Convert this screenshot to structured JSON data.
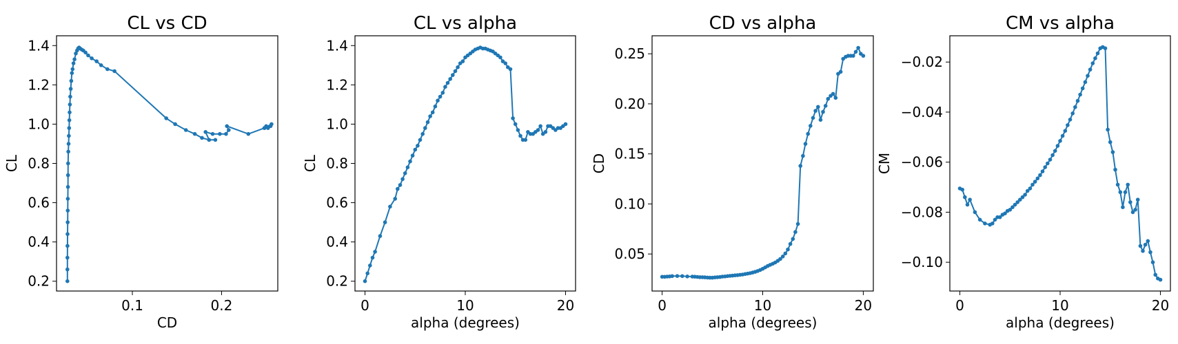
{
  "chart_data": [
    {
      "type": "line",
      "title": "CL vs CD",
      "xlabel": "CD",
      "ylabel": "CL",
      "xlim": [
        0.015,
        0.263
      ],
      "ylim": [
        0.15,
        1.45
      ],
      "xticks": [
        0.1,
        0.2
      ],
      "xtick_labels": [
        "0.1",
        "0.2"
      ],
      "yticks": [
        0.2,
        0.4,
        0.6,
        0.8,
        1.0,
        1.2,
        1.4
      ],
      "ytick_labels": [
        "0.2",
        "0.4",
        "0.6",
        "0.8",
        "1.0",
        "1.2",
        "1.4"
      ],
      "grid": false,
      "color": "#1f77b4",
      "marker": "circle",
      "series": [
        {
          "x": [
            0.0272,
            0.0272,
            0.0272,
            0.0273,
            0.0274,
            0.0275,
            0.0276,
            0.0277,
            0.0278,
            0.0279,
            0.028,
            0.0282,
            0.0285,
            0.0288,
            0.0291,
            0.0294,
            0.0297,
            0.03,
            0.0304,
            0.0309,
            0.0315,
            0.0322,
            0.033,
            0.034,
            0.0352,
            0.0366,
            0.038,
            0.0392,
            0.0403,
            0.0415,
            0.0432,
            0.045,
            0.0475,
            0.0505,
            0.0545,
            0.06,
            0.065,
            0.072,
            0.08,
            0.138,
            0.148,
            0.16,
            0.17,
            0.178,
            0.186,
            0.193,
            0.186,
            0.182,
            0.19,
            0.198,
            0.205,
            0.208,
            0.206,
            0.23,
            0.248,
            0.252,
            0.255,
            0.25,
            0.248,
            0.256
          ],
          "y": [
            0.2,
            0.26,
            0.32,
            0.38,
            0.44,
            0.5,
            0.56,
            0.62,
            0.68,
            0.74,
            0.8,
            0.86,
            0.9,
            0.94,
            0.98,
            1.02,
            1.06,
            1.1,
            1.14,
            1.18,
            1.22,
            1.26,
            1.28,
            1.31,
            1.33,
            1.36,
            1.375,
            1.385,
            1.39,
            1.385,
            1.38,
            1.375,
            1.365,
            1.35,
            1.335,
            1.32,
            1.3,
            1.28,
            1.27,
            1.03,
            1.0,
            0.97,
            0.95,
            0.93,
            0.92,
            0.92,
            0.92,
            0.96,
            0.95,
            0.95,
            0.95,
            0.97,
            0.99,
            0.95,
            0.98,
            0.98,
            0.99,
            0.99,
            0.98,
            1.0
          ]
        }
      ]
    },
    {
      "type": "line",
      "title": "CL vs alpha",
      "xlabel": "alpha (degrees)",
      "ylabel": "CL",
      "xlim": [
        -1,
        21
      ],
      "ylim": [
        0.15,
        1.45
      ],
      "xticks": [
        0,
        10,
        20
      ],
      "xtick_labels": [
        "0",
        "10",
        "20"
      ],
      "yticks": [
        0.2,
        0.4,
        0.6,
        0.8,
        1.0,
        1.2,
        1.4
      ],
      "ytick_labels": [
        "0.2",
        "0.4",
        "0.6",
        "0.8",
        "1.0",
        "1.2",
        "1.4"
      ],
      "grid": false,
      "color": "#1f77b4",
      "marker": "circle",
      "series": [
        {
          "x": [
            0.0,
            0.25,
            0.5,
            0.75,
            1.0,
            1.5,
            2.0,
            2.5,
            3.0,
            3.25,
            3.5,
            3.75,
            4.0,
            4.25,
            4.5,
            4.75,
            5.0,
            5.25,
            5.5,
            5.75,
            6.0,
            6.25,
            6.5,
            6.75,
            7.0,
            7.25,
            7.5,
            7.75,
            8.0,
            8.25,
            8.5,
            8.75,
            9.0,
            9.25,
            9.5,
            9.75,
            10.0,
            10.25,
            10.5,
            10.75,
            11.0,
            11.25,
            11.5,
            11.75,
            12.0,
            12.25,
            12.5,
            12.75,
            13.0,
            13.25,
            13.5,
            13.75,
            14.0,
            14.25,
            14.5,
            14.75,
            15.0,
            15.25,
            15.5,
            15.75,
            16.0,
            16.25,
            16.5,
            16.75,
            17.0,
            17.25,
            17.5,
            17.75,
            18.0,
            18.25,
            18.5,
            18.75,
            19.0,
            19.25,
            19.5,
            19.75,
            20.0
          ],
          "y": [
            0.2,
            0.24,
            0.28,
            0.32,
            0.35,
            0.43,
            0.5,
            0.58,
            0.62,
            0.67,
            0.69,
            0.72,
            0.75,
            0.78,
            0.81,
            0.84,
            0.87,
            0.89,
            0.92,
            0.95,
            0.98,
            1.01,
            1.04,
            1.06,
            1.09,
            1.12,
            1.14,
            1.16,
            1.19,
            1.21,
            1.23,
            1.25,
            1.27,
            1.29,
            1.31,
            1.32,
            1.34,
            1.35,
            1.36,
            1.37,
            1.38,
            1.385,
            1.39,
            1.385,
            1.385,
            1.38,
            1.375,
            1.37,
            1.36,
            1.35,
            1.34,
            1.32,
            1.31,
            1.29,
            1.28,
            1.03,
            1.0,
            0.97,
            0.94,
            0.92,
            0.92,
            0.96,
            0.95,
            0.95,
            0.96,
            0.97,
            0.99,
            0.95,
            0.96,
            0.99,
            0.99,
            0.98,
            0.97,
            0.98,
            0.98,
            0.99,
            1.0
          ]
        }
      ]
    },
    {
      "type": "line",
      "title": "CD vs alpha",
      "xlabel": "alpha (degrees)",
      "ylabel": "CD",
      "xlim": [
        -1,
        21
      ],
      "ylim": [
        0.013,
        0.268
      ],
      "xticks": [
        0,
        10,
        20
      ],
      "xtick_labels": [
        "0",
        "10",
        "20"
      ],
      "yticks": [
        0.05,
        0.1,
        0.15,
        0.2,
        0.25
      ],
      "ytick_labels": [
        "0.05",
        "0.10",
        "0.15",
        "0.20",
        "0.25"
      ],
      "grid": false,
      "color": "#1f77b4",
      "marker": "circle",
      "series": [
        {
          "x": [
            0.0,
            0.25,
            0.5,
            0.75,
            1.0,
            1.5,
            2.0,
            2.5,
            3.0,
            3.25,
            3.5,
            3.75,
            4.0,
            4.25,
            4.5,
            4.75,
            5.0,
            5.25,
            5.5,
            5.75,
            6.0,
            6.25,
            6.5,
            6.75,
            7.0,
            7.25,
            7.5,
            7.75,
            8.0,
            8.25,
            8.5,
            8.75,
            9.0,
            9.25,
            9.5,
            9.75,
            10.0,
            10.25,
            10.5,
            10.75,
            11.0,
            11.25,
            11.5,
            11.75,
            12.0,
            12.25,
            12.5,
            12.75,
            13.0,
            13.25,
            13.5,
            13.75,
            14.0,
            14.25,
            14.5,
            14.75,
            15.0,
            15.25,
            15.5,
            15.75,
            16.0,
            16.25,
            16.5,
            16.75,
            17.0,
            17.25,
            17.5,
            17.75,
            18.0,
            18.25,
            18.5,
            18.75,
            19.0,
            19.25,
            19.5,
            19.75,
            20.0
          ],
          "y": [
            0.0272,
            0.0272,
            0.0274,
            0.0276,
            0.0279,
            0.028,
            0.0279,
            0.0276,
            0.0274,
            0.0273,
            0.0271,
            0.0268,
            0.0268,
            0.0267,
            0.0265,
            0.0263,
            0.0263,
            0.0266,
            0.0268,
            0.027,
            0.0274,
            0.0276,
            0.0279,
            0.0282,
            0.0284,
            0.0287,
            0.0289,
            0.0292,
            0.0295,
            0.03,
            0.0304,
            0.0309,
            0.0315,
            0.0322,
            0.033,
            0.034,
            0.0352,
            0.0366,
            0.038,
            0.0392,
            0.0403,
            0.0415,
            0.0432,
            0.045,
            0.0475,
            0.0505,
            0.0545,
            0.06,
            0.065,
            0.072,
            0.08,
            0.138,
            0.148,
            0.16,
            0.17,
            0.178,
            0.186,
            0.193,
            0.197,
            0.184,
            0.192,
            0.198,
            0.205,
            0.208,
            0.21,
            0.206,
            0.23,
            0.232,
            0.245,
            0.247,
            0.248,
            0.248,
            0.248,
            0.252,
            0.256,
            0.25,
            0.248
          ],
          "y_note_order": "ordered by alpha"
        }
      ]
    },
    {
      "type": "line",
      "title": "CM vs alpha",
      "xlabel": "alpha (degrees)",
      "ylabel": "CM",
      "xlim": [
        -1,
        21
      ],
      "ylim": [
        -0.1115,
        -0.0095
      ],
      "xticks": [
        0,
        10,
        20
      ],
      "xtick_labels": [
        "0",
        "10",
        "20"
      ],
      "yticks": [
        -0.1,
        -0.08,
        -0.06,
        -0.04,
        -0.02
      ],
      "ytick_labels": [
        "−0.10",
        "−0.08",
        "−0.06",
        "−0.04",
        "−0.02"
      ],
      "grid": false,
      "color": "#1f77b4",
      "marker": "circle",
      "series": [
        {
          "x": [
            0.0,
            0.25,
            0.5,
            0.75,
            1.0,
            1.5,
            2.0,
            2.5,
            3.0,
            3.25,
            3.5,
            3.75,
            4.0,
            4.25,
            4.5,
            4.75,
            5.0,
            5.25,
            5.5,
            5.75,
            6.0,
            6.25,
            6.5,
            6.75,
            7.0,
            7.25,
            7.5,
            7.75,
            8.0,
            8.25,
            8.5,
            8.75,
            9.0,
            9.25,
            9.5,
            9.75,
            10.0,
            10.25,
            10.5,
            10.75,
            11.0,
            11.25,
            11.5,
            11.75,
            12.0,
            12.25,
            12.5,
            12.75,
            13.0,
            13.25,
            13.5,
            13.75,
            14.0,
            14.25,
            14.5,
            14.75,
            15.0,
            15.25,
            15.5,
            15.75,
            16.0,
            16.25,
            16.5,
            16.75,
            17.0,
            17.25,
            17.5,
            17.75,
            18.0,
            18.25,
            18.5,
            18.75,
            19.0,
            19.25,
            19.5,
            19.75,
            20.0
          ],
          "y": [
            -0.0705,
            -0.071,
            -0.074,
            -0.077,
            -0.075,
            -0.08,
            -0.083,
            -0.0845,
            -0.085,
            -0.0845,
            -0.083,
            -0.082,
            -0.082,
            -0.081,
            -0.0805,
            -0.0795,
            -0.079,
            -0.078,
            -0.077,
            -0.076,
            -0.075,
            -0.074,
            -0.073,
            -0.0715,
            -0.0705,
            -0.069,
            -0.0678,
            -0.0665,
            -0.0652,
            -0.0637,
            -0.062,
            -0.0605,
            -0.059,
            -0.0572,
            -0.0555,
            -0.0535,
            -0.0515,
            -0.0495,
            -0.0475,
            -0.0452,
            -0.043,
            -0.0405,
            -0.038,
            -0.0355,
            -0.033,
            -0.0305,
            -0.028,
            -0.0255,
            -0.023,
            -0.0205,
            -0.0185,
            -0.0165,
            -0.0145,
            -0.014,
            -0.0145,
            -0.047,
            -0.052,
            -0.056,
            -0.063,
            -0.069,
            -0.072,
            -0.078,
            -0.072,
            -0.069,
            -0.076,
            -0.08,
            -0.079,
            -0.075,
            -0.0935,
            -0.0955,
            -0.093,
            -0.0915,
            -0.096,
            -0.1,
            -0.105,
            -0.1065,
            -0.107
          ],
          "y_note_order": "ordered by alpha"
        }
      ]
    }
  ]
}
